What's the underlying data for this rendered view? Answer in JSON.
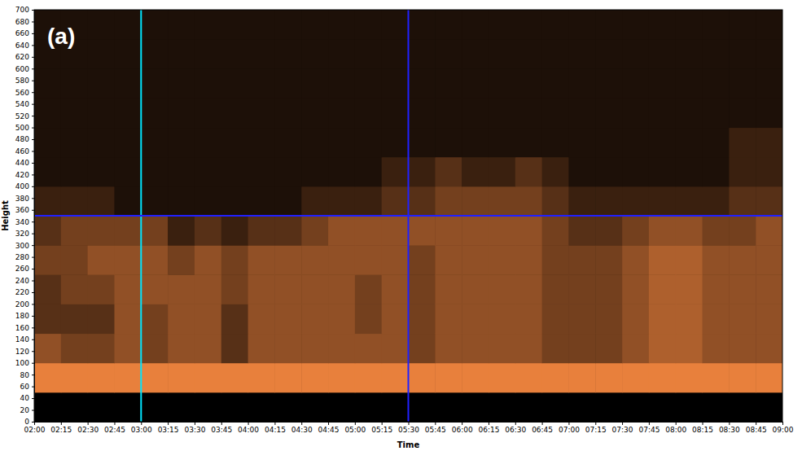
{
  "chart_data": {
    "type": "heatmap",
    "panel_label": "(a)",
    "x_label": "Time",
    "y_label": "Height",
    "color": "#e8803c",
    "grid": false,
    "xlim": [
      "02:00",
      "09:00"
    ],
    "xticks": [
      "02:00",
      "02:15",
      "02:30",
      "02:45",
      "03:00",
      "03:15",
      "03:30",
      "03:45",
      "04:00",
      "04:15",
      "04:30",
      "04:45",
      "05:00",
      "05:15",
      "05:30",
      "05:45",
      "06:00",
      "06:15",
      "06:30",
      "06:45",
      "07:00",
      "07:15",
      "07:30",
      "07:45",
      "08:00",
      "08:15",
      "08:30",
      "08:45",
      "09:00"
    ],
    "ylim": [
      0,
      700
    ],
    "yticks": [
      0,
      20,
      40,
      60,
      80,
      100,
      120,
      140,
      160,
      180,
      200,
      220,
      240,
      260,
      280,
      300,
      320,
      340,
      360,
      380,
      400,
      420,
      440,
      460,
      480,
      500,
      520,
      540,
      560,
      580,
      600,
      620,
      640,
      660,
      680,
      700
    ],
    "x_bins": [
      "02:00",
      "02:15",
      "02:30",
      "02:45",
      "03:00",
      "03:15",
      "03:30",
      "03:45",
      "04:00",
      "04:15",
      "04:30",
      "04:45",
      "05:00",
      "05:15",
      "05:30",
      "05:45",
      "06:00",
      "06:15",
      "06:30",
      "06:45",
      "07:00",
      "07:15",
      "07:30",
      "07:45",
      "08:00",
      "08:15",
      "08:30",
      "08:45",
      "09:00"
    ],
    "y_bins": [
      0,
      50,
      100,
      150,
      200,
      250,
      300,
      350,
      400,
      450,
      500,
      550,
      600,
      650,
      700
    ],
    "zlim": [
      0,
      8
    ],
    "values": [
      [
        0,
        0,
        0,
        0,
        0,
        0,
        0,
        0,
        0,
        0,
        0,
        0,
        0,
        0,
        0,
        0,
        0,
        0,
        0,
        0,
        0,
        0,
        0,
        0,
        0,
        0,
        0,
        0
      ],
      [
        8,
        8,
        8,
        8,
        8,
        8,
        8,
        8,
        8,
        8,
        8,
        8,
        8,
        8,
        8,
        8,
        8,
        8,
        8,
        8,
        8,
        8,
        8,
        8,
        8,
        8,
        8,
        8
      ],
      [
        5,
        4,
        4,
        5,
        4,
        5,
        5,
        3,
        5,
        5,
        5,
        5,
        5,
        5,
        4,
        5,
        5,
        5,
        5,
        4,
        4,
        4,
        5,
        6,
        6,
        5,
        5,
        5
      ],
      [
        3,
        3,
        3,
        5,
        4,
        5,
        5,
        3,
        5,
        5,
        5,
        5,
        4,
        5,
        4,
        5,
        5,
        5,
        5,
        4,
        4,
        4,
        5,
        6,
        6,
        5,
        5,
        5
      ],
      [
        3,
        4,
        4,
        5,
        5,
        5,
        5,
        4,
        5,
        5,
        5,
        5,
        4,
        5,
        4,
        5,
        5,
        5,
        5,
        4,
        4,
        4,
        5,
        6,
        6,
        5,
        5,
        5
      ],
      [
        4,
        4,
        5,
        5,
        5,
        4,
        5,
        4,
        5,
        5,
        5,
        5,
        5,
        5,
        4,
        5,
        5,
        5,
        5,
        4,
        4,
        4,
        5,
        6,
        6,
        5,
        5,
        5
      ],
      [
        3,
        4,
        4,
        4,
        4,
        2,
        3,
        2,
        3,
        3,
        4,
        5,
        5,
        5,
        5,
        5,
        5,
        5,
        5,
        4,
        3,
        3,
        4,
        5,
        5,
        4,
        4,
        5
      ],
      [
        2,
        2,
        2,
        1,
        1,
        1,
        1,
        1,
        1,
        1,
        2,
        2,
        2,
        3,
        3,
        4,
        4,
        4,
        4,
        3,
        2,
        2,
        2,
        2,
        2,
        2,
        3,
        3
      ],
      [
        1,
        1,
        1,
        1,
        1,
        1,
        1,
        1,
        1,
        1,
        1,
        1,
        1,
        2,
        2,
        3,
        2,
        2,
        3,
        2,
        1,
        1,
        1,
        1,
        1,
        1,
        2,
        2
      ],
      [
        1,
        1,
        1,
        1,
        1,
        1,
        1,
        1,
        1,
        1,
        1,
        1,
        1,
        1,
        1,
        1,
        1,
        1,
        1,
        1,
        1,
        1,
        1,
        1,
        1,
        1,
        2,
        2
      ],
      [
        1,
        1,
        1,
        1,
        1,
        1,
        1,
        1,
        1,
        1,
        1,
        1,
        1,
        1,
        1,
        1,
        1,
        1,
        1,
        1,
        1,
        1,
        1,
        1,
        1,
        1,
        1,
        1
      ],
      [
        1,
        1,
        1,
        1,
        1,
        1,
        1,
        1,
        1,
        1,
        1,
        1,
        1,
        1,
        1,
        1,
        1,
        1,
        1,
        1,
        1,
        1,
        1,
        1,
        1,
        1,
        1,
        1
      ],
      [
        1,
        1,
        1,
        1,
        1,
        1,
        1,
        1,
        1,
        1,
        1,
        1,
        1,
        1,
        1,
        1,
        1,
        1,
        1,
        1,
        1,
        1,
        1,
        1,
        1,
        1,
        1,
        1
      ],
      [
        1,
        1,
        1,
        1,
        1,
        1,
        1,
        1,
        1,
        1,
        1,
        1,
        1,
        1,
        1,
        1,
        1,
        1,
        1,
        1,
        1,
        1,
        1,
        1,
        1,
        1,
        1,
        1
      ]
    ],
    "cursors": [
      {
        "x": "03:00",
        "color": "#00e5ff"
      },
      {
        "x": "05:30",
        "color": "#2020ff"
      },
      {
        "y": 350,
        "color": "#2020ff"
      }
    ]
  }
}
